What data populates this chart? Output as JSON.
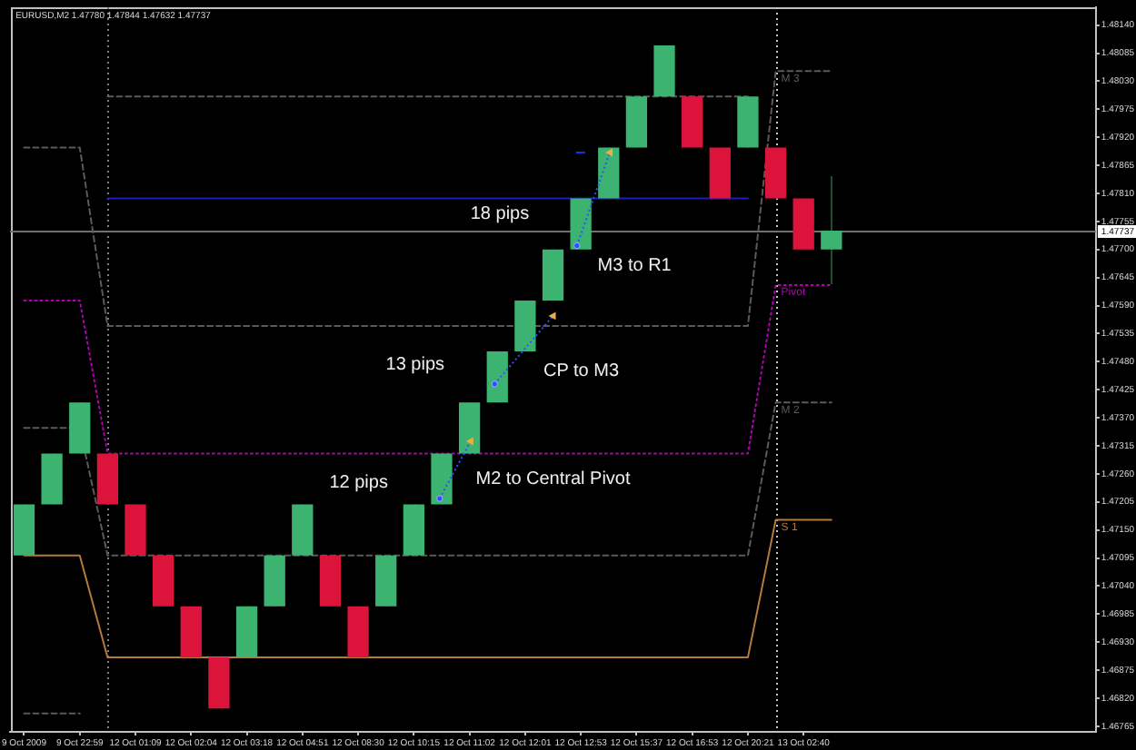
{
  "chart_data": {
    "type": "candlestick",
    "title": "EURUSD,M2 1.47780 1.47844 1.47632 1.47737",
    "categories": [
      "9 Oct 2009",
      null,
      "9 Oct 22:59",
      null,
      "12 Oct 01:09",
      null,
      "12 Oct 02:04",
      null,
      "12 Oct 03:18",
      null,
      "12 Oct 04:51",
      null,
      "12 Oct 08:30",
      null,
      "12 Oct 10:15",
      null,
      "12 Oct 11:02",
      null,
      "12 Oct 12:01",
      null,
      "12 Oct 12:53",
      null,
      "12 Oct 15:37",
      null,
      "12 Oct 16:53",
      null,
      "12 Oct 20:21",
      null,
      "13 Oct 02:40",
      null
    ],
    "ohlc": [
      [
        1.471,
        1.472,
        1.471,
        1.472
      ],
      [
        1.472,
        1.473,
        1.472,
        1.473
      ],
      [
        1.473,
        1.474,
        1.473,
        1.474
      ],
      [
        1.473,
        1.473,
        1.472,
        1.472
      ],
      [
        1.472,
        1.472,
        1.471,
        1.471
      ],
      [
        1.471,
        1.471,
        1.47,
        1.47
      ],
      [
        1.47,
        1.47,
        1.469,
        1.469
      ],
      [
        1.469,
        1.469,
        1.468,
        1.468
      ],
      [
        1.469,
        1.47,
        1.469,
        1.47
      ],
      [
        1.47,
        1.471,
        1.47,
        1.471
      ],
      [
        1.471,
        1.472,
        1.471,
        1.472
      ],
      [
        1.471,
        1.471,
        1.47,
        1.47
      ],
      [
        1.47,
        1.47,
        1.469,
        1.469
      ],
      [
        1.47,
        1.471,
        1.47,
        1.471
      ],
      [
        1.471,
        1.472,
        1.471,
        1.472
      ],
      [
        1.472,
        1.473,
        1.472,
        1.473
      ],
      [
        1.473,
        1.474,
        1.473,
        1.474
      ],
      [
        1.474,
        1.475,
        1.474,
        1.475
      ],
      [
        1.475,
        1.476,
        1.475,
        1.476
      ],
      [
        1.476,
        1.477,
        1.476,
        1.477
      ],
      [
        1.477,
        1.478,
        1.477,
        1.478
      ],
      [
        1.478,
        1.479,
        1.478,
        1.479
      ],
      [
        1.479,
        1.48,
        1.479,
        1.48
      ],
      [
        1.48,
        1.481,
        1.48,
        1.481
      ],
      [
        1.48,
        1.48,
        1.479,
        1.479
      ],
      [
        1.479,
        1.479,
        1.478,
        1.478
      ],
      [
        1.479,
        1.48,
        1.479,
        1.48
      ],
      [
        1.479,
        1.479,
        1.478,
        1.478
      ],
      [
        1.478,
        1.478,
        1.477,
        1.477
      ],
      [
        1.477,
        1.47844,
        1.47632,
        1.47737
      ]
    ],
    "colors": [
      "#3cb371",
      "#3cb371",
      "#3cb371",
      "#dc143c",
      "#dc143c",
      "#dc143c",
      "#dc143c",
      "#dc143c",
      "#3cb371",
      "#3cb371",
      "#3cb371",
      "#dc143c",
      "#dc143c",
      "#3cb371",
      "#3cb371",
      "#3cb371",
      "#3cb371",
      "#3cb371",
      "#3cb371",
      "#3cb371",
      "#3cb371",
      "#3cb371",
      "#3cb371",
      "#3cb371",
      "#dc143c",
      "#dc143c",
      "#3cb371",
      "#dc143c",
      "#dc143c",
      "#3cb371"
    ],
    "ylim": [
      1.46754,
      1.48175
    ],
    "yticks": [
      1.46765,
      {
        "value": 1.4682,
        "label": "1.46820"
      },
      1.46875,
      {
        "value": 1.4693,
        "label": "1.46930"
      },
      1.46985,
      {
        "value": 1.4704,
        "label": "1.47040"
      },
      1.47095,
      {
        "value": 1.4715,
        "label": "1.47150"
      },
      1.47205,
      {
        "value": 1.4726,
        "label": "1.47260"
      },
      1.47315,
      {
        "value": 1.4737,
        "label": "1.47370"
      },
      1.47425,
      {
        "value": 1.4748,
        "label": "1.47480"
      },
      1.47535,
      {
        "value": 1.4759,
        "label": "1.47590"
      },
      1.47645,
      {
        "value": 1.477,
        "label": "1.47700"
      },
      1.47755,
      {
        "value": 1.4781,
        "label": "1.47810"
      },
      1.47865,
      {
        "value": 1.4792,
        "label": "1.47920"
      },
      1.47975,
      {
        "value": 1.4803,
        "label": "1.48030"
      },
      1.48085,
      {
        "value": 1.4814,
        "label": "1.48140"
      }
    ],
    "series": [
      {
        "name": "M 3",
        "type": "line",
        "color": "#5a5a5a",
        "line_style": "dashed",
        "values": [
          1.479,
          1.479,
          1.479,
          1.4755,
          1.4755,
          1.4755,
          1.4755,
          1.4755,
          1.4755,
          1.4755,
          1.4755,
          1.4755,
          1.4755,
          1.4755,
          1.4755,
          1.4755,
          1.4755,
          1.4755,
          1.4755,
          1.4755,
          1.4755,
          1.4755,
          1.4755,
          1.4755,
          1.4755,
          1.4755,
          1.4755,
          1.4805,
          1.4805,
          1.4805
        ]
      },
      {
        "name": "Pivot",
        "type": "line",
        "color": "#b400b4",
        "line_style": "dotted",
        "values": [
          1.476,
          1.476,
          1.476,
          1.473,
          1.473,
          1.473,
          1.473,
          1.473,
          1.473,
          1.473,
          1.473,
          1.473,
          1.473,
          1.473,
          1.473,
          1.473,
          1.473,
          1.473,
          1.473,
          1.473,
          1.473,
          1.473,
          1.473,
          1.473,
          1.473,
          1.473,
          1.473,
          1.4763,
          1.4763,
          1.4763
        ]
      },
      {
        "name": "M 2",
        "type": "line",
        "color": "#5a5a5a",
        "line_style": "dashed",
        "values": [
          1.4735,
          1.4735,
          1.4735,
          1.471,
          1.471,
          1.471,
          1.471,
          1.471,
          1.471,
          1.471,
          1.471,
          1.471,
          1.471,
          1.471,
          1.471,
          1.471,
          1.471,
          1.471,
          1.471,
          1.471,
          1.471,
          1.471,
          1.471,
          1.471,
          1.471,
          1.471,
          1.471,
          1.474,
          1.474,
          1.474
        ]
      },
      {
        "name": "S 1",
        "type": "line",
        "color": "#b47a3c",
        "line_style": "solid",
        "values": [
          1.471,
          1.471,
          1.471,
          1.469,
          1.469,
          1.469,
          1.469,
          1.469,
          1.469,
          1.469,
          1.469,
          1.469,
          1.469,
          1.469,
          1.469,
          1.469,
          1.469,
          1.469,
          1.469,
          1.469,
          1.469,
          1.469,
          1.469,
          1.469,
          1.469,
          1.469,
          1.469,
          1.4717,
          1.4717,
          1.4717
        ]
      },
      {
        "type": "line",
        "color": "#1c1cc0",
        "line_style": "solid",
        "values": [
          null,
          null,
          null,
          1.478,
          1.478,
          1.478,
          1.478,
          1.478,
          1.478,
          1.478,
          1.478,
          1.478,
          1.478,
          1.478,
          1.478,
          1.478,
          1.478,
          1.478,
          1.478,
          1.478,
          1.478,
          1.478,
          1.478,
          1.478,
          1.478,
          1.478,
          1.478,
          null,
          null,
          null
        ]
      },
      {
        "type": "line",
        "color": "#5a5a5a",
        "line_style": "dashed",
        "values": [
          null,
          null,
          null,
          1.48,
          1.48,
          1.48,
          1.48,
          1.48,
          1.48,
          1.48,
          1.48,
          1.48,
          1.48,
          1.48,
          1.48,
          1.48,
          1.48,
          1.48,
          1.48,
          1.48,
          1.48,
          1.48,
          1.48,
          1.48,
          1.48,
          1.48,
          1.48,
          null,
          null,
          null
        ]
      },
      {
        "type": "line",
        "color": "#5a5a5a",
        "line_style": "dashed",
        "values": [
          1.4679,
          1.4679,
          1.4679,
          null,
          null,
          null,
          null,
          null,
          null,
          null,
          null,
          null,
          null,
          null,
          null,
          null,
          null,
          null,
          null,
          null,
          null,
          null,
          null,
          null,
          null,
          null,
          null,
          null,
          null,
          null
        ]
      }
    ],
    "ref_lines": [
      {
        "axis": "y",
        "value": 1.47737,
        "label": "1.47737",
        "color": "#707070",
        "line_style": "solid"
      }
    ],
    "annotations": [
      "18 pips",
      "M3 to R1",
      "13 pips",
      "CP to M3",
      "12 pips",
      "M2 to Central Pivot"
    ]
  }
}
